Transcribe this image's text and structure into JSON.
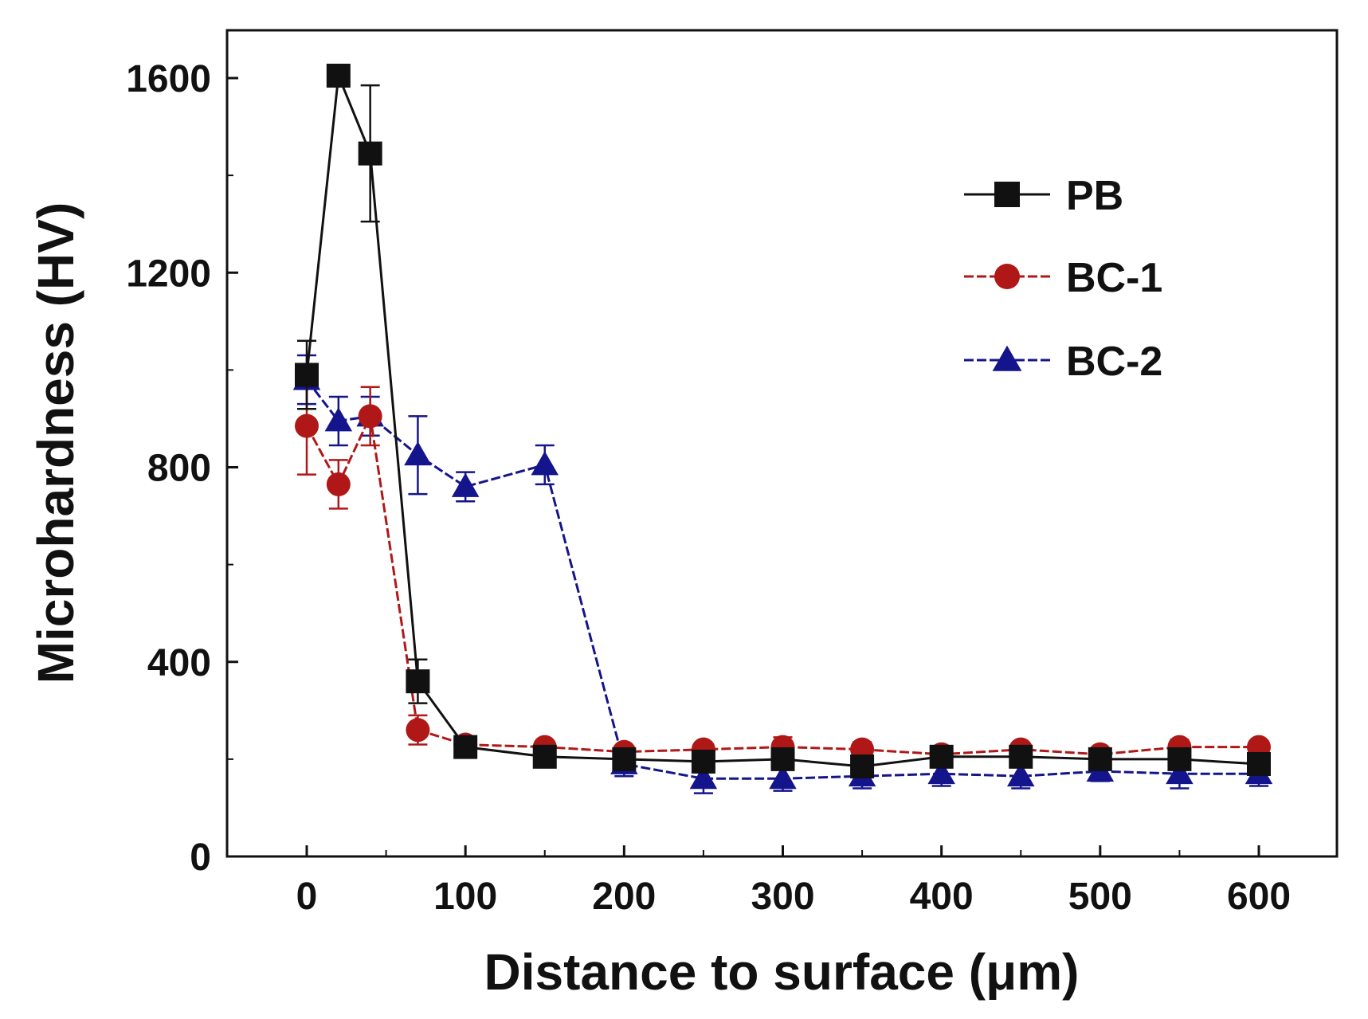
{
  "chart_data": {
    "type": "line",
    "title": "",
    "xlabel": "Distance to surface (μm)",
    "ylabel": "Microhardness (HV)",
    "xlim": [
      -50,
      650
    ],
    "ylim": [
      0,
      1700
    ],
    "xticks": [
      0,
      100,
      200,
      300,
      400,
      500,
      600
    ],
    "yticks": [
      0,
      400,
      800,
      1200,
      1600
    ],
    "xtick_labels": [
      "0",
      "100",
      "200",
      "300",
      "400",
      "500",
      "600"
    ],
    "ytick_labels": [
      "0",
      "400",
      "800",
      "1200",
      "1600"
    ],
    "grid": false,
    "legend_position": "top-right",
    "series": [
      {
        "name": "PB",
        "color": "#111111",
        "marker": "square",
        "x": [
          0,
          20,
          40,
          70,
          100,
          150,
          200,
          250,
          300,
          350,
          400,
          450,
          500,
          550,
          600
        ],
        "y": [
          990,
          1605,
          1445,
          360,
          225,
          205,
          200,
          195,
          200,
          185,
          205,
          205,
          200,
          200,
          190
        ],
        "err": [
          70,
          0,
          140,
          45,
          10,
          10,
          10,
          15,
          15,
          15,
          10,
          10,
          15,
          15,
          10
        ]
      },
      {
        "name": "BC-1",
        "color": "#b01818",
        "marker": "circle",
        "x": [
          0,
          20,
          40,
          70,
          100,
          150,
          200,
          250,
          300,
          350,
          400,
          450,
          500,
          550,
          600
        ],
        "y": [
          885,
          765,
          905,
          260,
          230,
          225,
          215,
          220,
          225,
          220,
          210,
          220,
          210,
          225,
          225
        ],
        "err": [
          100,
          50,
          60,
          30,
          15,
          10,
          10,
          10,
          20,
          15,
          10,
          10,
          10,
          15,
          10
        ]
      },
      {
        "name": "BC-2",
        "color": "#14148c",
        "marker": "triangle",
        "x": [
          0,
          20,
          40,
          70,
          100,
          150,
          200,
          250,
          300,
          350,
          400,
          450,
          500,
          550,
          600
        ],
        "y": [
          980,
          895,
          905,
          825,
          760,
          805,
          190,
          160,
          160,
          165,
          170,
          165,
          175,
          170,
          170
        ],
        "err": [
          50,
          50,
          40,
          80,
          30,
          40,
          25,
          30,
          25,
          25,
          25,
          25,
          20,
          30,
          25
        ]
      }
    ]
  }
}
